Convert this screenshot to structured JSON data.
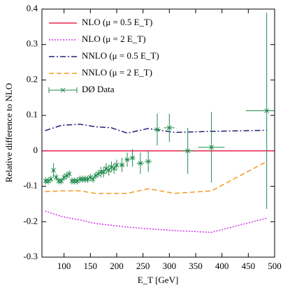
{
  "chart_data": {
    "type": "line",
    "xlabel": "E_T [GeV]",
    "ylabel": "Relative difference to NLO",
    "xlim": [
      58,
      500
    ],
    "ylim": [
      -0.3,
      0.4
    ],
    "xticks": [
      100,
      150,
      200,
      250,
      300,
      350,
      400,
      450,
      500
    ],
    "yticks": [
      -0.3,
      -0.2,
      -0.1,
      0,
      0.1,
      0.2,
      0.3,
      0.4
    ],
    "legend": "upper left",
    "series": [
      {
        "name": "NLO (μ = 0.5 E_T)",
        "color": "#e8224a",
        "style": "solid",
        "x": [
          58,
          500
        ],
        "values": [
          0,
          0
        ]
      },
      {
        "name": "NLO (μ = 2 E_T)",
        "color": "#d030f0",
        "style": "dotted",
        "x": [
          64,
          95,
          130,
          160,
          190,
          220,
          260,
          310,
          380,
          485
        ],
        "values": [
          -0.17,
          -0.185,
          -0.195,
          -0.205,
          -0.21,
          -0.215,
          -0.22,
          -0.225,
          -0.23,
          -0.19
        ]
      },
      {
        "name": "NNLO (μ = 0.5 E_T)",
        "color": "#20207a",
        "style": "dashdot",
        "x": [
          64,
          95,
          130,
          160,
          190,
          220,
          260,
          310,
          380,
          485
        ],
        "values": [
          0.057,
          0.072,
          0.075,
          0.068,
          0.065,
          0.05,
          0.063,
          0.052,
          0.055,
          0.058
        ]
      },
      {
        "name": "NNLO (μ = 2 E_T)",
        "color": "#f39a1e",
        "style": "dashed",
        "x": [
          64,
          95,
          130,
          160,
          190,
          220,
          260,
          310,
          380,
          485
        ],
        "values": [
          -0.115,
          -0.113,
          -0.113,
          -0.12,
          -0.12,
          -0.12,
          -0.107,
          -0.12,
          -0.113,
          -0.03
        ]
      },
      {
        "name": "DØ Data",
        "color": "#1f8a4c",
        "style": "points",
        "x": [
          65,
          70,
          75,
          80,
          85,
          90,
          95,
          100,
          105,
          110,
          115,
          120,
          125,
          130,
          135,
          140,
          145,
          150,
          155,
          160,
          165,
          170,
          175,
          180,
          185,
          190,
          195,
          200,
          210,
          220,
          230,
          245,
          260,
          277,
          300,
          335,
          380,
          485
        ],
        "values": [
          -0.085,
          -0.085,
          -0.08,
          -0.055,
          -0.075,
          -0.085,
          -0.085,
          -0.075,
          -0.07,
          -0.065,
          -0.085,
          -0.085,
          -0.085,
          -0.08,
          -0.08,
          -0.08,
          -0.08,
          -0.075,
          -0.08,
          -0.07,
          -0.065,
          -0.06,
          -0.06,
          -0.05,
          -0.055,
          -0.045,
          -0.05,
          -0.04,
          -0.04,
          -0.025,
          -0.02,
          -0.035,
          -0.03,
          0.06,
          0.065,
          0,
          0.01,
          0.113
        ],
        "yerr": [
          0.01,
          0.01,
          0.01,
          0.02,
          0.01,
          0.01,
          0.01,
          0.01,
          0.01,
          0.01,
          0.01,
          0.01,
          0.01,
          0.01,
          0.01,
          0.01,
          0.01,
          0.01,
          0.01,
          0.01,
          0.01,
          0.015,
          0.015,
          0.015,
          0.015,
          0.015,
          0.015,
          0.015,
          0.02,
          0.02,
          0.025,
          0.03,
          0.03,
          0.045,
          0.04,
          0.065,
          0.1,
          0.277
        ],
        "xerr": [
          2.5,
          2.5,
          2.5,
          2.5,
          2.5,
          2.5,
          2.5,
          2.5,
          2.5,
          2.5,
          2.5,
          2.5,
          2.5,
          2.5,
          2.5,
          2.5,
          2.5,
          2.5,
          2.5,
          2.5,
          2.5,
          2.5,
          2.5,
          2.5,
          2.5,
          2.5,
          2.5,
          2.5,
          5,
          5,
          5,
          7,
          7,
          7,
          10,
          12,
          25,
          40
        ]
      }
    ]
  }
}
